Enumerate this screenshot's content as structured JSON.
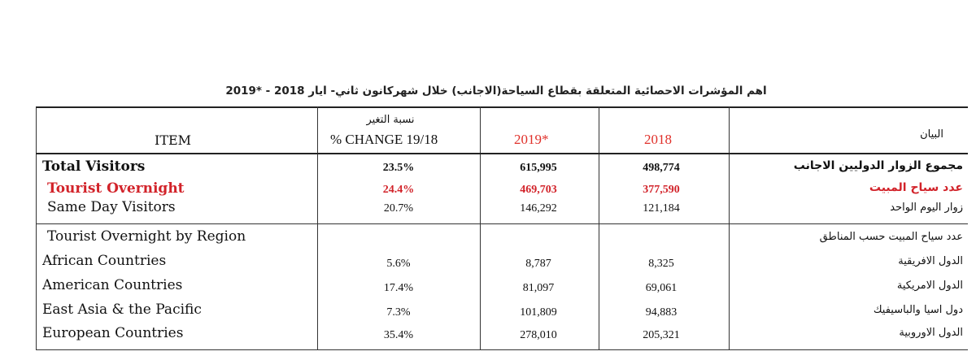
{
  "title": "اهم المؤشرات الاحصائية المتعلقة بقطاع السياحة(الاجانب) خلال شهركانون ثاني- ايار 2018 - *2019",
  "header": {
    "item": "ITEM",
    "change_ar": "نسبة التغير",
    "change_en": "% CHANGE 19/18",
    "y2019": "2019*",
    "y2018": "2018",
    "statement_ar": "البيان"
  },
  "rows": [
    {
      "en": "Total Visitors",
      "pct": "23.5%",
      "v2019": "615,995",
      "v2018": "498,774",
      "ar": "مجموع الزوار الدوليين الاجانب"
    },
    {
      "en": "Tourist Overnight",
      "pct": "24.4%",
      "v2019": "469,703",
      "v2018": "377,590",
      "ar": "عدد سياح المبيت"
    },
    {
      "en": "Same Day Visitors",
      "pct": "20.7%",
      "v2019": "146,292",
      "v2018": "121,184",
      "ar": "زوار اليوم الواحد"
    }
  ],
  "region_section": {
    "en": "Tourist Overnight by Region",
    "ar": "عدد سياح المبيت حسب المناطق",
    "rows": [
      {
        "en": "African Countries",
        "pct": "5.6%",
        "v2019": "8,787",
        "v2018": "8,325",
        "ar": "الدول الافريقية"
      },
      {
        "en": "American Countries",
        "pct": "17.4%",
        "v2019": "81,097",
        "v2018": "69,061",
        "ar": "الدول الامريكية"
      },
      {
        "en": "East Asia & the Pacific",
        "pct": "7.3%",
        "v2019": "101,809",
        "v2018": "94,883",
        "ar": "دول اسيا والباسيفيك"
      },
      {
        "en": "European Countries",
        "pct": "35.4%",
        "v2019": "278,010",
        "v2018": "205,321",
        "ar": "الدول الاوروبية"
      }
    ]
  },
  "colors": {
    "highlight_red": "#d2232a",
    "year_red": "#e0302a"
  }
}
